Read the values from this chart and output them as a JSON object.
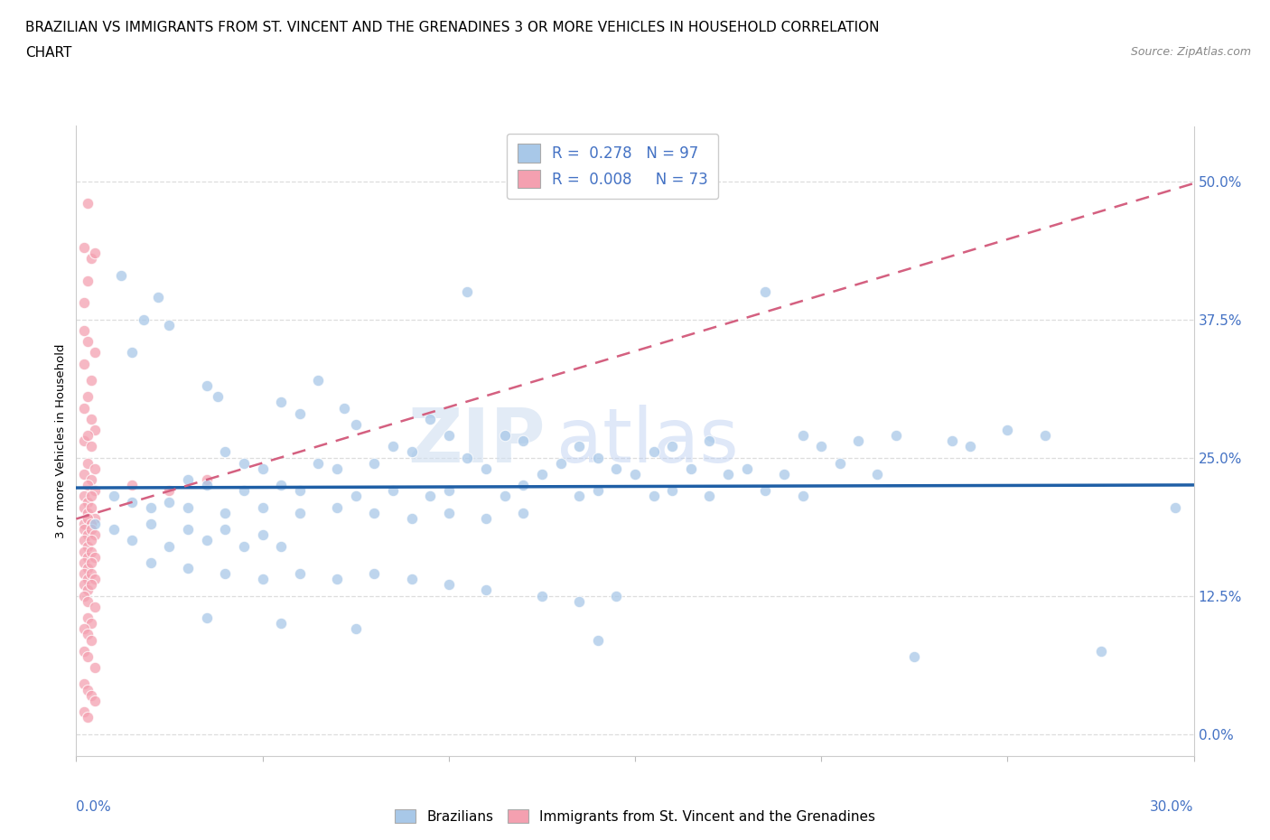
{
  "title_line1": "BRAZILIAN VS IMMIGRANTS FROM ST. VINCENT AND THE GRENADINES 3 OR MORE VEHICLES IN HOUSEHOLD CORRELATION",
  "title_line2": "CHART",
  "source_text": "Source: ZipAtlas.com",
  "ylabel": "3 or more Vehicles in Household",
  "ytick_vals": [
    0.0,
    12.5,
    25.0,
    37.5,
    50.0
  ],
  "xlim": [
    0.0,
    30.0
  ],
  "ylim": [
    -2.0,
    55.0
  ],
  "watermark_zip": "ZIP",
  "watermark_atlas": "atlas",
  "legend_brazil_R": "0.278",
  "legend_brazil_N": "97",
  "legend_svg_R": "0.008",
  "legend_svg_N": "73",
  "blue_color": "#a8c8e8",
  "pink_color": "#f4a0b0",
  "blue_line_color": "#1f5fa6",
  "pink_line_color": "#d46080",
  "axis_label_color": "#4472c4",
  "brazil_scatter": [
    [
      1.2,
      41.5
    ],
    [
      2.2,
      39.5
    ],
    [
      1.8,
      37.5
    ],
    [
      2.5,
      37.0
    ],
    [
      1.5,
      34.5
    ],
    [
      3.5,
      31.5
    ],
    [
      3.8,
      30.5
    ],
    [
      6.5,
      32.0
    ],
    [
      10.5,
      40.0
    ],
    [
      18.5,
      40.0
    ],
    [
      5.5,
      30.0
    ],
    [
      6.0,
      29.0
    ],
    [
      7.2,
      29.5
    ],
    [
      7.5,
      28.0
    ],
    [
      9.5,
      28.5
    ],
    [
      10.0,
      27.0
    ],
    [
      11.5,
      27.0
    ],
    [
      12.0,
      26.5
    ],
    [
      8.5,
      26.0
    ],
    [
      9.0,
      25.5
    ],
    [
      13.5,
      26.0
    ],
    [
      14.0,
      25.0
    ],
    [
      15.5,
      25.5
    ],
    [
      16.0,
      26.0
    ],
    [
      17.0,
      26.5
    ],
    [
      19.5,
      27.0
    ],
    [
      20.0,
      26.0
    ],
    [
      21.0,
      26.5
    ],
    [
      22.0,
      27.0
    ],
    [
      23.5,
      26.5
    ],
    [
      24.0,
      26.0
    ],
    [
      25.0,
      27.5
    ],
    [
      26.0,
      27.0
    ],
    [
      4.0,
      25.5
    ],
    [
      4.5,
      24.5
    ],
    [
      5.0,
      24.0
    ],
    [
      6.5,
      24.5
    ],
    [
      7.0,
      24.0
    ],
    [
      8.0,
      24.5
    ],
    [
      10.5,
      25.0
    ],
    [
      11.0,
      24.0
    ],
    [
      12.5,
      23.5
    ],
    [
      13.0,
      24.5
    ],
    [
      14.5,
      24.0
    ],
    [
      15.0,
      23.5
    ],
    [
      16.5,
      24.0
    ],
    [
      17.5,
      23.5
    ],
    [
      18.0,
      24.0
    ],
    [
      19.0,
      23.5
    ],
    [
      20.5,
      24.5
    ],
    [
      21.5,
      23.5
    ],
    [
      3.0,
      23.0
    ],
    [
      3.5,
      22.5
    ],
    [
      4.5,
      22.0
    ],
    [
      5.5,
      22.5
    ],
    [
      6.0,
      22.0
    ],
    [
      7.5,
      21.5
    ],
    [
      8.5,
      22.0
    ],
    [
      9.5,
      21.5
    ],
    [
      10.0,
      22.0
    ],
    [
      11.5,
      21.5
    ],
    [
      12.0,
      22.5
    ],
    [
      13.5,
      21.5
    ],
    [
      14.0,
      22.0
    ],
    [
      15.5,
      21.5
    ],
    [
      16.0,
      22.0
    ],
    [
      17.0,
      21.5
    ],
    [
      18.5,
      22.0
    ],
    [
      19.5,
      21.5
    ],
    [
      1.0,
      21.5
    ],
    [
      1.5,
      21.0
    ],
    [
      2.0,
      20.5
    ],
    [
      2.5,
      21.0
    ],
    [
      3.0,
      20.5
    ],
    [
      4.0,
      20.0
    ],
    [
      5.0,
      20.5
    ],
    [
      6.0,
      20.0
    ],
    [
      7.0,
      20.5
    ],
    [
      8.0,
      20.0
    ],
    [
      9.0,
      19.5
    ],
    [
      10.0,
      20.0
    ],
    [
      11.0,
      19.5
    ],
    [
      12.0,
      20.0
    ],
    [
      0.5,
      19.0
    ],
    [
      1.0,
      18.5
    ],
    [
      2.0,
      19.0
    ],
    [
      3.0,
      18.5
    ],
    [
      4.0,
      18.5
    ],
    [
      5.0,
      18.0
    ],
    [
      1.5,
      17.5
    ],
    [
      2.5,
      17.0
    ],
    [
      3.5,
      17.5
    ],
    [
      4.5,
      17.0
    ],
    [
      5.5,
      17.0
    ],
    [
      2.0,
      15.5
    ],
    [
      3.0,
      15.0
    ],
    [
      4.0,
      14.5
    ],
    [
      5.0,
      14.0
    ],
    [
      6.0,
      14.5
    ],
    [
      7.0,
      14.0
    ],
    [
      8.0,
      14.5
    ],
    [
      9.0,
      14.0
    ],
    [
      10.0,
      13.5
    ],
    [
      11.0,
      13.0
    ],
    [
      12.5,
      12.5
    ],
    [
      13.5,
      12.0
    ],
    [
      14.5,
      12.5
    ],
    [
      3.5,
      10.5
    ],
    [
      5.5,
      10.0
    ],
    [
      7.5,
      9.5
    ],
    [
      14.0,
      8.5
    ],
    [
      22.5,
      7.0
    ],
    [
      27.5,
      7.5
    ],
    [
      29.5,
      20.5
    ]
  ],
  "svg_scatter": [
    [
      0.3,
      48.0
    ],
    [
      0.2,
      44.0
    ],
    [
      0.4,
      43.0
    ],
    [
      0.5,
      43.5
    ],
    [
      0.3,
      41.0
    ],
    [
      0.2,
      39.0
    ],
    [
      0.2,
      36.5
    ],
    [
      0.3,
      35.5
    ],
    [
      0.5,
      34.5
    ],
    [
      0.2,
      33.5
    ],
    [
      0.4,
      32.0
    ],
    [
      0.3,
      30.5
    ],
    [
      0.2,
      29.5
    ],
    [
      0.4,
      28.5
    ],
    [
      0.5,
      27.5
    ],
    [
      0.2,
      26.5
    ],
    [
      0.3,
      27.0
    ],
    [
      0.4,
      26.0
    ],
    [
      0.3,
      24.5
    ],
    [
      0.5,
      24.0
    ],
    [
      0.2,
      23.5
    ],
    [
      0.4,
      23.0
    ],
    [
      0.3,
      22.5
    ],
    [
      0.5,
      22.0
    ],
    [
      0.2,
      21.5
    ],
    [
      0.3,
      21.0
    ],
    [
      0.4,
      21.5
    ],
    [
      0.2,
      20.5
    ],
    [
      0.3,
      20.0
    ],
    [
      0.4,
      20.5
    ],
    [
      0.5,
      19.5
    ],
    [
      0.2,
      19.0
    ],
    [
      0.3,
      19.5
    ],
    [
      0.4,
      19.0
    ],
    [
      0.2,
      18.5
    ],
    [
      0.3,
      18.0
    ],
    [
      0.4,
      18.5
    ],
    [
      0.5,
      18.0
    ],
    [
      0.2,
      17.5
    ],
    [
      0.3,
      17.0
    ],
    [
      0.4,
      17.5
    ],
    [
      0.2,
      16.5
    ],
    [
      0.3,
      16.0
    ],
    [
      0.4,
      16.5
    ],
    [
      0.5,
      16.0
    ],
    [
      0.2,
      15.5
    ],
    [
      0.3,
      15.0
    ],
    [
      0.4,
      15.5
    ],
    [
      0.2,
      14.5
    ],
    [
      0.3,
      14.0
    ],
    [
      0.4,
      14.5
    ],
    [
      0.5,
      14.0
    ],
    [
      0.2,
      13.5
    ],
    [
      0.3,
      13.0
    ],
    [
      0.4,
      13.5
    ],
    [
      0.2,
      12.5
    ],
    [
      0.3,
      12.0
    ],
    [
      0.5,
      11.5
    ],
    [
      0.3,
      10.5
    ],
    [
      0.4,
      10.0
    ],
    [
      0.2,
      9.5
    ],
    [
      0.3,
      9.0
    ],
    [
      0.4,
      8.5
    ],
    [
      0.2,
      7.5
    ],
    [
      0.3,
      7.0
    ],
    [
      0.5,
      6.0
    ],
    [
      0.2,
      4.5
    ],
    [
      0.3,
      4.0
    ],
    [
      0.4,
      3.5
    ],
    [
      0.5,
      3.0
    ],
    [
      0.2,
      2.0
    ],
    [
      0.3,
      1.5
    ],
    [
      1.5,
      22.5
    ],
    [
      2.5,
      22.0
    ],
    [
      3.5,
      23.0
    ]
  ]
}
